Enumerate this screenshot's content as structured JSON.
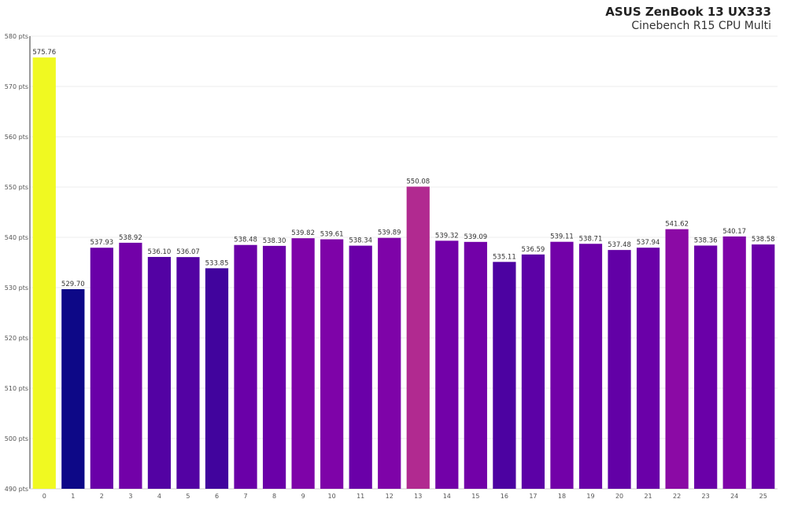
{
  "chart_data": {
    "type": "bar",
    "title": "ASUS ZenBook 13 UX333",
    "subtitle": "Cinebench R15 CPU Multi",
    "categories": [
      "0",
      "1",
      "2",
      "3",
      "4",
      "5",
      "6",
      "7",
      "8",
      "9",
      "10",
      "11",
      "12",
      "13",
      "14",
      "15",
      "16",
      "17",
      "18",
      "19",
      "20",
      "21",
      "22",
      "23",
      "24",
      "25"
    ],
    "values": [
      575.76,
      529.7,
      537.93,
      538.92,
      536.1,
      536.07,
      533.85,
      538.48,
      538.3,
      539.82,
      539.61,
      538.34,
      539.89,
      550.08,
      539.32,
      539.09,
      535.11,
      536.59,
      539.11,
      538.71,
      537.48,
      537.94,
      541.62,
      538.36,
      540.17,
      538.58
    ],
    "value_labels": [
      "575.76",
      "529.70",
      "537.93",
      "538.92",
      "536.10",
      "536.07",
      "533.85",
      "538.48",
      "538.30",
      "539.82",
      "539.61",
      "538.34",
      "539.89",
      "550.08",
      "539.32",
      "539.09",
      "535.11",
      "536.59",
      "539.11",
      "538.71",
      "537.48",
      "537.94",
      "541.62",
      "538.36",
      "540.17",
      "538.58"
    ],
    "colors": [
      "#f0f921",
      "#0d0887",
      "#6a00a8",
      "#7201a8",
      "#5302a3",
      "#5302a3",
      "#41049d",
      "#6a00a8",
      "#6a00a8",
      "#7e03a8",
      "#7e03a8",
      "#6a00a8",
      "#7e03a8",
      "#b12a90",
      "#7201a8",
      "#7201a8",
      "#4c02a1",
      "#5c01a6",
      "#7201a8",
      "#6a00a8",
      "#6200a6",
      "#6a00a8",
      "#8b0aa5",
      "#6a00a8",
      "#7e03a8",
      "#6a00a8"
    ],
    "ylim": [
      490,
      580
    ],
    "yticks": [
      490,
      500,
      510,
      520,
      530,
      540,
      550,
      560,
      570,
      580
    ],
    "ytick_labels": [
      "490 pts",
      "500 pts",
      "510 pts",
      "520 pts",
      "530 pts",
      "540 pts",
      "550 pts",
      "560 pts",
      "570 pts",
      "580 pts"
    ],
    "xlabel": "",
    "ylabel": "",
    "grid": true
  }
}
